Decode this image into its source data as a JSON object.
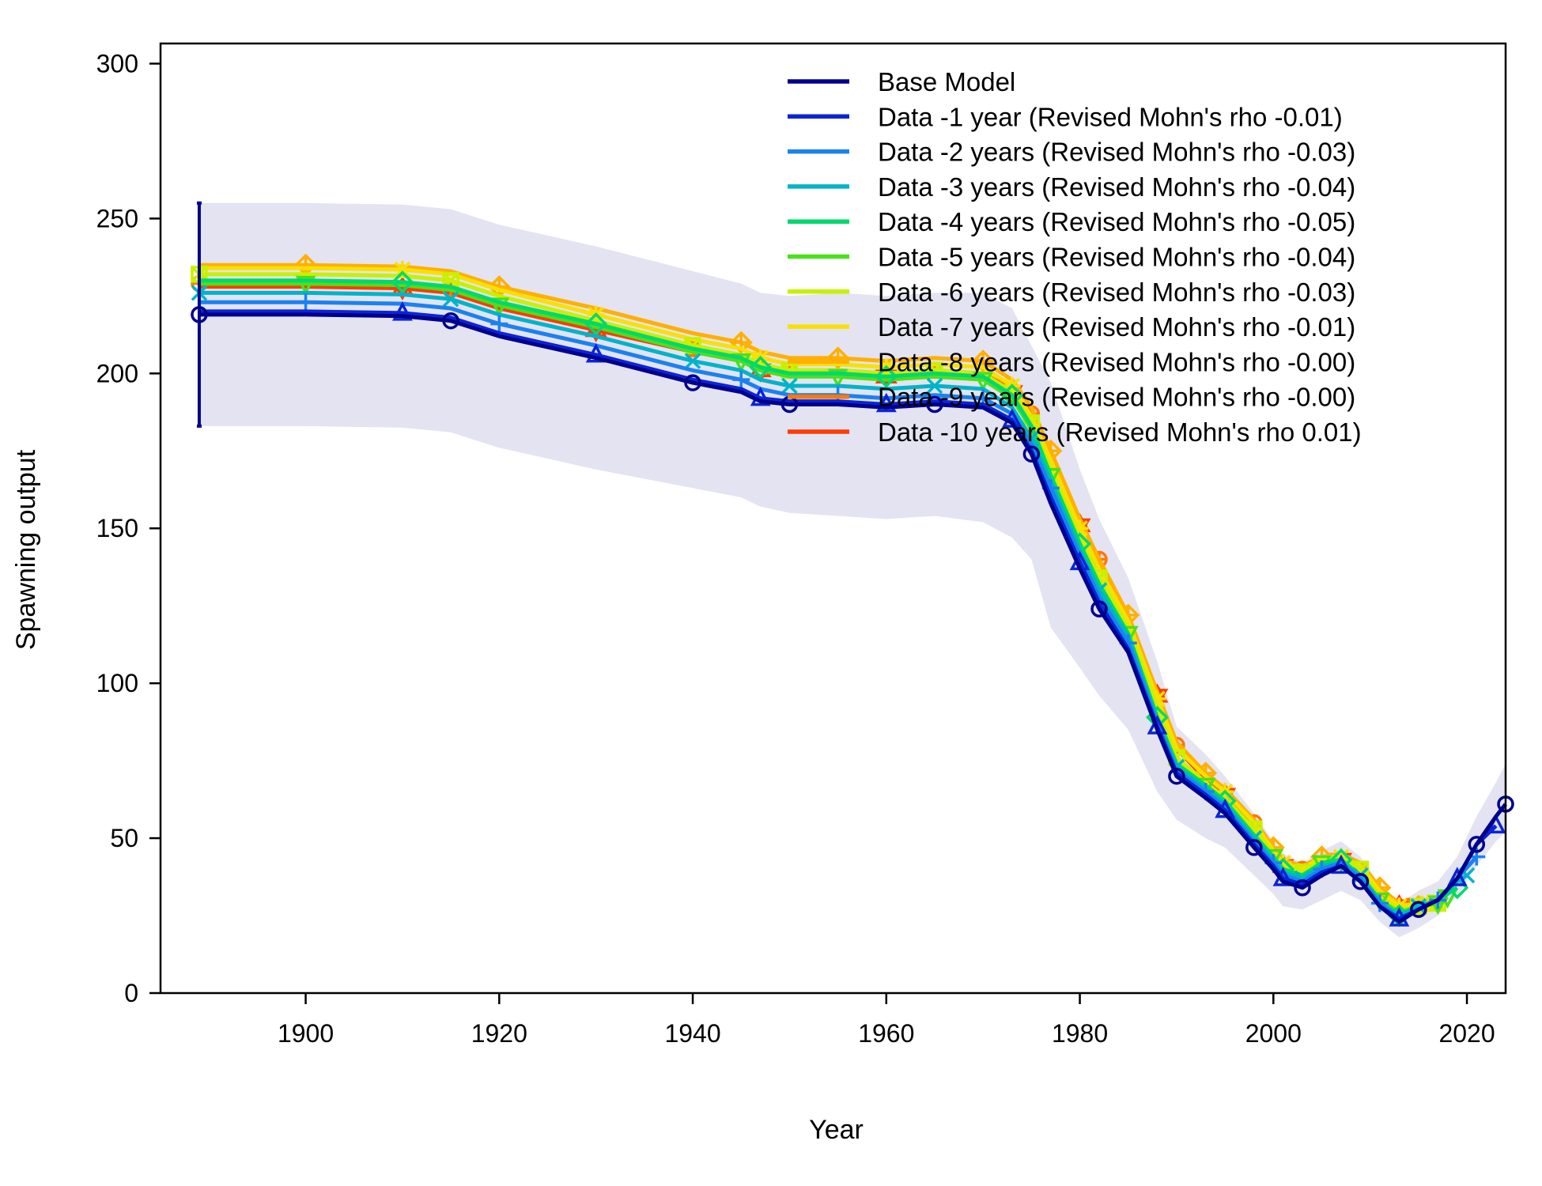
{
  "chart_data": {
    "type": "line",
    "title": "",
    "xlabel": "Year",
    "ylabel": "Spawning output",
    "xlim": [
      1888,
      2024
    ],
    "ylim": [
      0,
      300
    ],
    "x_ticks": [
      1900,
      1920,
      1940,
      1960,
      1980,
      2000,
      2020
    ],
    "y_ticks": [
      0,
      50,
      100,
      150,
      200,
      250,
      300
    ],
    "grid": false,
    "legend_position": "top-right",
    "confidence_band_color": "#e3e3f2",
    "first_year_interval": {
      "x": 1889,
      "low": 183,
      "high": 255,
      "color": "#00008b"
    },
    "series": [
      {
        "name": "Base Model",
        "color": "#00008b",
        "marker": "circle",
        "x": [
          1889,
          1900,
          1910,
          1915,
          1920,
          1930,
          1940,
          1945,
          1947,
          1950,
          1955,
          1960,
          1965,
          1970,
          1973,
          1975,
          1977,
          1980,
          1982,
          1985,
          1988,
          1990,
          1993,
          1995,
          1998,
          2000,
          2001,
          2003,
          2005,
          2007,
          2009,
          2011,
          2013,
          2015,
          2017,
          2019,
          2021,
          2023,
          2024
        ],
        "y": [
          219,
          219,
          218.5,
          217,
          212,
          205,
          197,
          194,
          191,
          190,
          190,
          189,
          190,
          189,
          184,
          174,
          158,
          137,
          124,
          110,
          85,
          70,
          63,
          58,
          47,
          40,
          36,
          34,
          38,
          41,
          36,
          28,
          23,
          27,
          30,
          37,
          48,
          57,
          61
        ]
      },
      {
        "name": "Data -1 year (Revised Mohn's rho -0.01)",
        "color": "#0a24d8",
        "marker": "triangle",
        "x": [
          1889,
          1900,
          1910,
          1915,
          1920,
          1930,
          1940,
          1945,
          1947,
          1950,
          1955,
          1960,
          1965,
          1970,
          1973,
          1975,
          1977,
          1980,
          1982,
          1985,
          1988,
          1990,
          1993,
          1995,
          1998,
          2000,
          2001,
          2003,
          2005,
          2007,
          2009,
          2011,
          2013,
          2015,
          2017,
          2019,
          2021,
          2023
        ],
        "y": [
          220,
          220,
          219.5,
          218,
          213,
          206,
          198,
          195,
          192,
          191,
          191,
          190,
          191,
          190,
          185,
          175,
          160,
          139,
          126,
          111,
          86,
          71,
          64,
          59,
          48,
          41,
          37,
          35,
          39,
          41,
          36,
          28,
          24,
          27,
          30,
          37,
          48,
          54
        ]
      },
      {
        "name": "Data -2 years (Revised Mohn's rho -0.03)",
        "color": "#1a82f0",
        "marker": "plus",
        "x": [
          1889,
          1900,
          1910,
          1915,
          1920,
          1930,
          1940,
          1945,
          1947,
          1950,
          1955,
          1960,
          1965,
          1970,
          1973,
          1975,
          1977,
          1980,
          1982,
          1985,
          1988,
          1990,
          1993,
          1995,
          1998,
          2000,
          2001,
          2003,
          2005,
          2007,
          2009,
          2011,
          2013,
          2015,
          2017,
          2019,
          2021
        ],
        "y": [
          223,
          223,
          222.5,
          221,
          216,
          209,
          201,
          198,
          195,
          193,
          193,
          192,
          193,
          192,
          187,
          177,
          163,
          141,
          128,
          113,
          87,
          72,
          65,
          60,
          49,
          42,
          38,
          36,
          40,
          42,
          37,
          29,
          24,
          27,
          30,
          37,
          44
        ]
      },
      {
        "name": "Data -3 years (Revised Mohn's rho -0.04)",
        "color": "#00b4c8",
        "marker": "cross",
        "x": [
          1889,
          1900,
          1910,
          1915,
          1920,
          1930,
          1940,
          1945,
          1947,
          1950,
          1955,
          1960,
          1965,
          1970,
          1973,
          1975,
          1977,
          1980,
          1982,
          1985,
          1988,
          1990,
          1993,
          1995,
          1998,
          2000,
          2001,
          2003,
          2005,
          2007,
          2009,
          2011,
          2013,
          2015,
          2017,
          2019,
          2020
        ],
        "y": [
          226,
          226,
          225.5,
          224,
          219,
          212,
          204,
          201,
          198,
          196,
          196,
          195,
          196,
          195,
          189,
          179,
          165,
          143,
          130,
          115,
          88,
          73,
          66,
          61,
          50,
          43,
          39,
          37,
          41,
          42,
          38,
          29,
          25,
          28,
          30,
          36,
          38
        ]
      },
      {
        "name": "Data -4 years (Revised Mohn's rho -0.05)",
        "color": "#00d86e",
        "marker": "diamond",
        "x": [
          1889,
          1900,
          1910,
          1915,
          1920,
          1930,
          1940,
          1945,
          1947,
          1950,
          1955,
          1960,
          1965,
          1970,
          1973,
          1975,
          1977,
          1980,
          1982,
          1985,
          1988,
          1990,
          1993,
          1995,
          1998,
          2000,
          2001,
          2003,
          2005,
          2007,
          2009,
          2011,
          2013,
          2015,
          2017,
          2019
        ],
        "y": [
          230,
          230,
          229.5,
          228,
          223,
          216,
          208,
          205,
          202,
          200,
          200,
          199,
          200,
          199,
          193,
          183,
          167,
          145,
          132,
          116,
          89,
          74,
          67,
          62,
          51,
          44,
          40,
          38,
          42,
          43,
          38,
          30,
          25,
          28,
          30,
          34
        ]
      },
      {
        "name": "Data -5 years (Revised Mohn's rho -0.04)",
        "color": "#4ce01c",
        "marker": "triangle-down",
        "x": [
          1889,
          1900,
          1910,
          1915,
          1920,
          1930,
          1940,
          1945,
          1947,
          1950,
          1955,
          1960,
          1965,
          1970,
          1973,
          1975,
          1977,
          1980,
          1982,
          1985,
          1988,
          1990,
          1993,
          1995,
          1998,
          2000,
          2001,
          2003,
          2005,
          2007,
          2009,
          2011,
          2013,
          2015,
          2017,
          2018
        ],
        "y": [
          229,
          229,
          228.5,
          227,
          222,
          215,
          207,
          204,
          201,
          199,
          199,
          198,
          199,
          198,
          192,
          182,
          167,
          145,
          132,
          116,
          89,
          74,
          67,
          62,
          51,
          44,
          40,
          38,
          42,
          43,
          38,
          30,
          26,
          28,
          29,
          31
        ]
      },
      {
        "name": "Data -6 years (Revised Mohn's rho -0.03)",
        "color": "#c8f000",
        "marker": "square-cross",
        "x": [
          1889,
          1900,
          1910,
          1915,
          1920,
          1930,
          1940,
          1945,
          1947,
          1950,
          1955,
          1960,
          1965,
          1970,
          1973,
          1975,
          1977,
          1980,
          1982,
          1985,
          1988,
          1990,
          1993,
          1995,
          1998,
          2000,
          2001,
          2003,
          2005,
          2007,
          2009,
          2011,
          2013,
          2015,
          2017
        ],
        "y": [
          232,
          232,
          231.5,
          230,
          225,
          217,
          209,
          206,
          203,
          201,
          201,
          200,
          201,
          200,
          194,
          184,
          169,
          147,
          134,
          118,
          92,
          76,
          68,
          63,
          53,
          45,
          41,
          39,
          43,
          44,
          40,
          31,
          27,
          28,
          29
        ]
      },
      {
        "name": "Data -7 years (Revised Mohn's rho -0.01)",
        "color": "#f8e000",
        "marker": "asterisk",
        "x": [
          1889,
          1900,
          1910,
          1915,
          1920,
          1930,
          1940,
          1945,
          1947,
          1950,
          1955,
          1960,
          1965,
          1970,
          1973,
          1975,
          1977,
          1980,
          1982,
          1985,
          1988,
          1990,
          1993,
          1995,
          1998,
          2000,
          2001,
          2003,
          2005,
          2007,
          2009,
          2011,
          2013,
          2015,
          2016
        ],
        "y": [
          234,
          234,
          233.5,
          232,
          227,
          219,
          211,
          208,
          205,
          203,
          203,
          202,
          203,
          202,
          196,
          186,
          172,
          150,
          137,
          120,
          95,
          79,
          70,
          65,
          55,
          46,
          42,
          40,
          44,
          44,
          41,
          33,
          28,
          29,
          29
        ]
      },
      {
        "name": "Data -8 years (Revised Mohn's rho -0.00)",
        "color": "#ffb000",
        "marker": "diamond-plus",
        "x": [
          1889,
          1900,
          1910,
          1915,
          1920,
          1930,
          1940,
          1945,
          1947,
          1950,
          1955,
          1960,
          1965,
          1970,
          1973,
          1975,
          1977,
          1980,
          1982,
          1985,
          1988,
          1990,
          1993,
          1995,
          1998,
          2000,
          2001,
          2003,
          2005,
          2007,
          2009,
          2011,
          2013,
          2015
        ],
        "y": [
          235,
          235,
          234.5,
          233,
          228,
          221,
          213,
          210,
          207,
          205,
          205,
          204,
          205,
          204,
          198,
          189,
          175,
          153,
          140,
          122,
          97,
          81,
          71,
          66,
          56,
          47,
          43,
          41,
          44,
          45,
          42,
          34,
          29,
          28
        ]
      },
      {
        "name": "Data -9 years (Revised Mohn's rho -0.00)",
        "color": "#ff7800",
        "marker": "circle-plus",
        "x": [
          1889,
          1900,
          1910,
          1915,
          1920,
          1930,
          1940,
          1945,
          1947,
          1950,
          1955,
          1960,
          1965,
          1970,
          1973,
          1975,
          1977,
          1980,
          1982,
          1985,
          1988,
          1990,
          1993,
          1995,
          1998,
          2000,
          2001,
          2003,
          2005,
          2007,
          2009,
          2011,
          2013,
          2014
        ],
        "y": [
          229,
          229,
          228.5,
          227,
          222,
          215,
          208,
          205,
          202,
          201,
          201,
          200,
          201,
          200,
          195,
          187,
          173,
          152,
          140,
          122,
          97,
          80,
          70,
          65,
          55,
          46,
          42,
          40,
          43,
          44,
          40,
          33,
          28,
          28
        ]
      },
      {
        "name": "Data -10 years (Revised Mohn's rho 0.01)",
        "color": "#ff3c00",
        "marker": "star",
        "x": [
          1889,
          1900,
          1910,
          1915,
          1920,
          1930,
          1940,
          1945,
          1947,
          1950,
          1955,
          1960,
          1965,
          1970,
          1973,
          1975,
          1977,
          1980,
          1982,
          1985,
          1988,
          1990,
          1993,
          1995,
          1998,
          2000,
          2001,
          2003,
          2005,
          2007,
          2009,
          2011,
          2013
        ],
        "y": [
          228,
          228,
          227.5,
          226,
          221,
          214,
          207,
          204,
          201,
          200,
          200,
          199,
          200,
          199,
          194,
          186,
          172,
          151,
          139,
          121,
          96,
          79,
          69,
          64,
          54,
          45,
          41,
          39,
          42,
          43,
          39,
          32,
          28
        ]
      }
    ],
    "confidence_band": {
      "x": [
        1889,
        1900,
        1910,
        1915,
        1920,
        1930,
        1940,
        1945,
        1947,
        1950,
        1955,
        1960,
        1965,
        1970,
        1973,
        1975,
        1977,
        1980,
        1982,
        1985,
        1988,
        1990,
        1993,
        1995,
        1998,
        2000,
        2001,
        2003,
        2005,
        2007,
        2009,
        2011,
        2013,
        2015,
        2017,
        2019,
        2021,
        2023,
        2024
      ],
      "low": [
        183,
        183,
        182.5,
        181,
        176,
        169,
        163,
        160,
        157,
        155,
        154,
        153,
        154,
        152,
        147,
        140,
        118,
        105,
        96,
        85,
        65,
        56,
        50,
        47,
        38,
        32,
        28,
        27,
        30,
        33,
        30,
        23,
        18,
        21,
        25,
        31,
        41,
        49,
        52
      ],
      "high": [
        255,
        255,
        254.5,
        253,
        248,
        241,
        233,
        229,
        226,
        225,
        226,
        225,
        226,
        226,
        221,
        209,
        197,
        169,
        153,
        134,
        107,
        86,
        77,
        70,
        58,
        49,
        45,
        42,
        46,
        49,
        44,
        35,
        29,
        33,
        36,
        44,
        57,
        68,
        74
      ]
    }
  }
}
